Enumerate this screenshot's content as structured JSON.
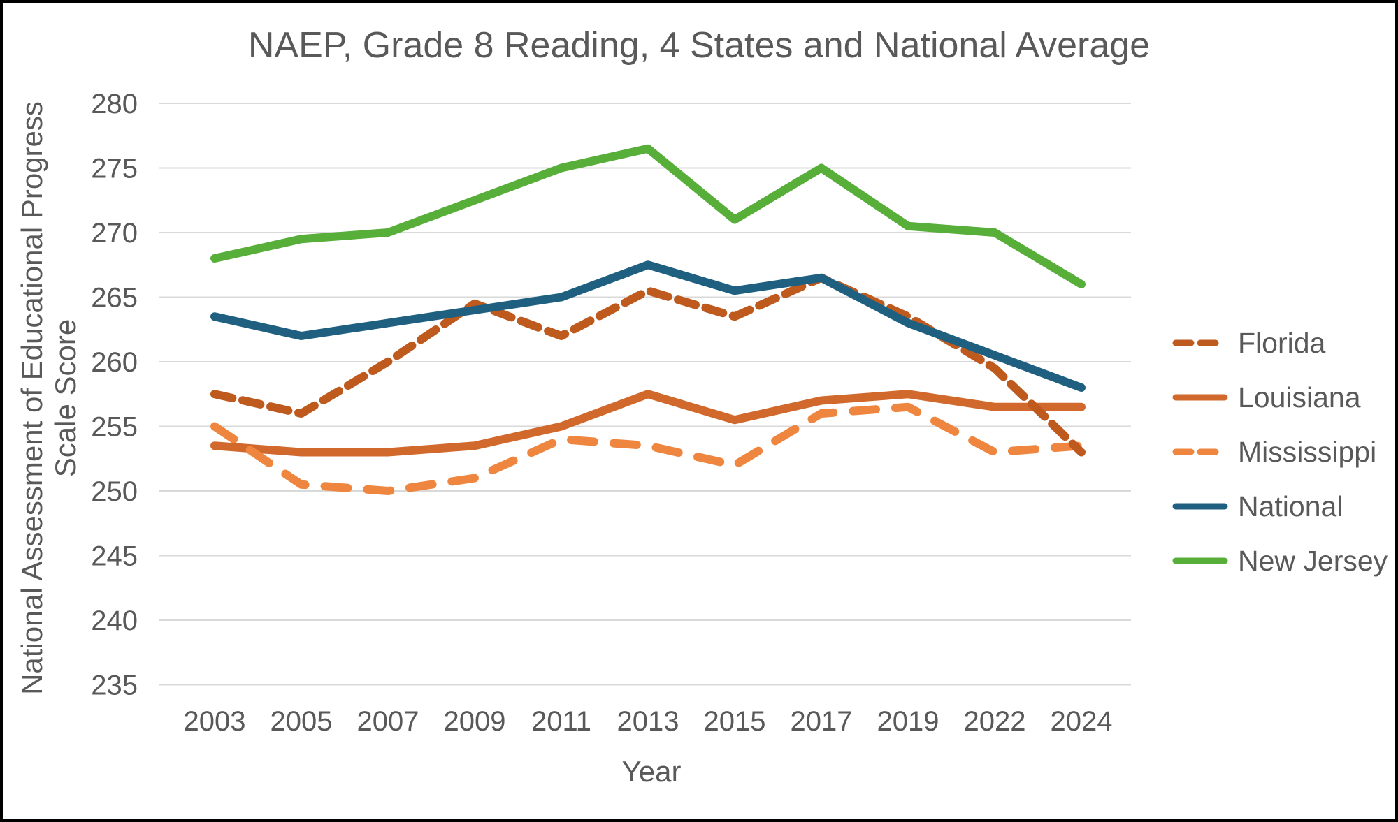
{
  "title": "NAEP, Grade 8 Reading, 4 States and National Average",
  "x_axis": {
    "label": "Year",
    "ticks": [
      "2003",
      "2005",
      "2007",
      "2009",
      "2011",
      "2013",
      "2015",
      "2017",
      "2019",
      "2022",
      "2024"
    ]
  },
  "y_axis": {
    "label_line1": "National Assessment of Educational Progress",
    "label_line2": "Scale Score",
    "ticks": [
      "280",
      "275",
      "270",
      "265",
      "260",
      "255",
      "250",
      "245",
      "240",
      "235"
    ],
    "min": 235,
    "max": 280,
    "step": 5
  },
  "colors": {
    "text": "#595959",
    "gridline": "#D9D9D9",
    "background": "#FFFFFF",
    "border": "#000000"
  },
  "chart_data": {
    "type": "line",
    "title": "NAEP, Grade 8 Reading, 4 States and National Average",
    "xlabel": "Year",
    "ylabel": "National Assessment of Educational Progress Scale Score",
    "categories": [
      2003,
      2005,
      2007,
      2009,
      2011,
      2013,
      2015,
      2017,
      2019,
      2022,
      2024
    ],
    "ylim": [
      235,
      280
    ],
    "grid": true,
    "legend_position": "right",
    "series": [
      {
        "name": "Florida",
        "color": "#BE5A1E",
        "line_style": "dashed-short",
        "values": [
          257.5,
          256,
          260,
          264.5,
          262,
          265.5,
          263.5,
          266.5,
          263.5,
          259.5,
          253
        ]
      },
      {
        "name": "Louisiana",
        "color": "#D2692C",
        "line_style": "solid",
        "values": [
          253.5,
          253,
          253,
          253.5,
          255,
          257.5,
          255.5,
          257,
          257.5,
          256.5,
          256.5
        ]
      },
      {
        "name": "Mississippi",
        "color": "#EE8640",
        "line_style": "dashed-long",
        "values": [
          255,
          250.5,
          250,
          251,
          254,
          253.5,
          252,
          256,
          256.5,
          253,
          253.5
        ]
      },
      {
        "name": "National",
        "color": "#1F6080",
        "line_style": "solid",
        "values": [
          263.5,
          262,
          263,
          264,
          265,
          267.5,
          265.5,
          266.5,
          263,
          260.5,
          258
        ]
      },
      {
        "name": "New Jersey",
        "color": "#57AF3A",
        "line_style": "solid",
        "values": [
          268,
          269.5,
          270,
          272.5,
          275,
          276.5,
          271,
          275,
          270.5,
          270,
          266
        ]
      }
    ]
  }
}
